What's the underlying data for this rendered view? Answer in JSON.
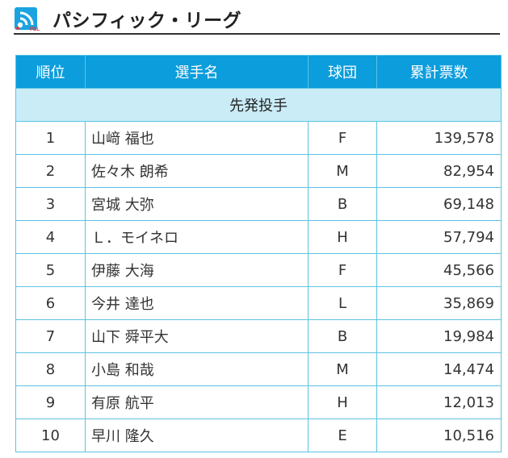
{
  "header": {
    "title": "パシフィック・リーグ",
    "logo_text": "PBL",
    "logo_color": "#1aa3e0"
  },
  "table": {
    "columns": [
      "順位",
      "選手名",
      "球団",
      "累計票数"
    ],
    "section_label": "先発投手",
    "rows": [
      {
        "rank": "1",
        "name": "山﨑 福也",
        "team": "F",
        "votes": "139,578"
      },
      {
        "rank": "2",
        "name": "佐々木 朗希",
        "team": "M",
        "votes": "82,954"
      },
      {
        "rank": "3",
        "name": "宮城 大弥",
        "team": "B",
        "votes": "69,148"
      },
      {
        "rank": "4",
        "name": "Ｌ．モイネロ",
        "team": "H",
        "votes": "57,794"
      },
      {
        "rank": "5",
        "name": "伊藤 大海",
        "team": "F",
        "votes": "45,566"
      },
      {
        "rank": "6",
        "name": "今井 達也",
        "team": "L",
        "votes": "35,869"
      },
      {
        "rank": "7",
        "name": "山下 舜平大",
        "team": "B",
        "votes": "19,984"
      },
      {
        "rank": "8",
        "name": "小島 和哉",
        "team": "M",
        "votes": "14,474"
      },
      {
        "rank": "9",
        "name": "有原 航平",
        "team": "H",
        "votes": "12,013"
      },
      {
        "rank": "10",
        "name": "早川 隆久",
        "team": "E",
        "votes": "10,516"
      }
    ]
  },
  "colors": {
    "header_bg": "#0c9ddc",
    "section_bg": "#c9ecf7",
    "border": "#5cc3e1"
  }
}
